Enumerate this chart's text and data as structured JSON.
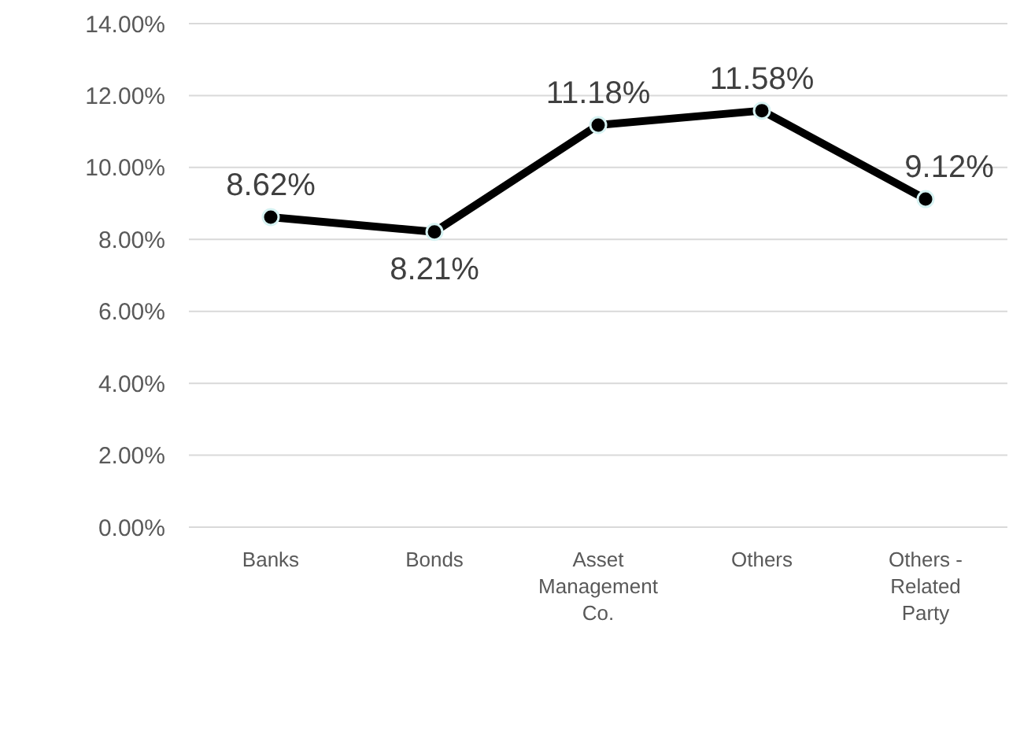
{
  "chart_data": {
    "type": "line",
    "categories": [
      "Banks",
      "Bonds",
      "Asset Management Co.",
      "Others",
      "Others - Related Party"
    ],
    "values": [
      8.62,
      8.21,
      11.18,
      11.58,
      9.12
    ],
    "value_labels": [
      "8.62%",
      "8.21%",
      "11.18%",
      "11.58%",
      "9.12%"
    ],
    "color": "#000000",
    "marker": "circle",
    "line_style": "solid",
    "grid": "y",
    "ylim": [
      0,
      14
    ],
    "yticks": [
      {
        "value": 0,
        "label": "0.00%"
      },
      {
        "value": 2,
        "label": "2.00%"
      },
      {
        "value": 4,
        "label": "4.00%"
      },
      {
        "value": 6,
        "label": "6.00%"
      },
      {
        "value": 8,
        "label": "8.00%"
      },
      {
        "value": 10,
        "label": "10.00%"
      },
      {
        "value": 12,
        "label": "12.00%"
      },
      {
        "value": 14,
        "label": "14.00%"
      }
    ]
  }
}
